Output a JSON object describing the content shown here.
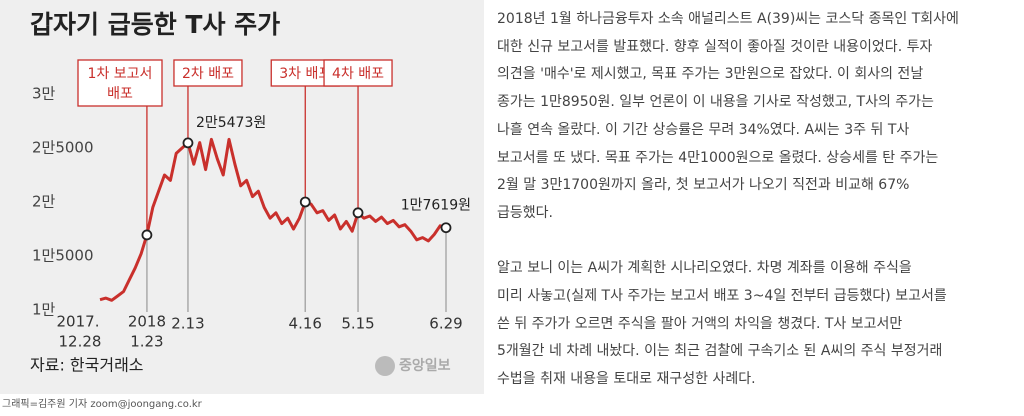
{
  "chart_data": {
    "type": "line",
    "title": "갑자기 급등한 T사 주가",
    "color": "#c9302c",
    "categories": [
      "12.28",
      null,
      null,
      null,
      null,
      null,
      null,
      null,
      "1.23",
      null,
      null,
      null,
      null,
      null,
      null,
      "2.13",
      null,
      null,
      null,
      null,
      null,
      null,
      null,
      null,
      null,
      null,
      null,
      null,
      null,
      null,
      null,
      null,
      null,
      null,
      null,
      "4.16",
      null,
      null,
      null,
      null,
      null,
      null,
      null,
      null,
      "5.15",
      null,
      null,
      null,
      null,
      null,
      null,
      null,
      null,
      null,
      null,
      null,
      null,
      null,
      null,
      "6.29"
    ],
    "x_years": [
      "2017.",
      "2018"
    ],
    "values": [
      10950,
      11100,
      10900,
      11300,
      11700,
      12800,
      13900,
      15200,
      16950,
      19500,
      21000,
      22500,
      22000,
      24500,
      25000,
      25473,
      23500,
      25500,
      23000,
      25800,
      24000,
      22500,
      25800,
      23500,
      21500,
      22000,
      20500,
      21000,
      19500,
      18500,
      19000,
      18000,
      18500,
      17500,
      18500,
      20000,
      19800,
      19000,
      19200,
      18300,
      18800,
      17500,
      18200,
      17300,
      19000,
      18500,
      18700,
      18200,
      18600,
      18000,
      18300,
      17700,
      17900,
      17300,
      16500,
      16700,
      16400,
      17000,
      17800,
      17619
    ],
    "value_labels": [
      "2만5473원",
      "1만7619원"
    ],
    "annotations": [
      [
        "1차 보고서",
        "배포"
      ],
      [
        "2차 배포"
      ],
      [
        "3차 배포"
      ],
      [
        "4차 배포"
      ]
    ],
    "ylim": [
      10000,
      30000
    ],
    "yticks": [
      {
        "value": 10000,
        "label": "1만"
      },
      {
        "value": 15000,
        "label": "1만5000"
      },
      {
        "value": 20000,
        "label": "2만"
      },
      {
        "value": 25000,
        "label": "2만5000"
      },
      {
        "value": 30000,
        "label": "3만"
      }
    ],
    "source": "자료: 한국거래소",
    "logo": "중앙일보"
  },
  "article": {
    "paragraphs": [
      [
        "2018년 1월 하나금융투자 소속 애널리스트 A(39)씨는 코스닥 종목인 T회사에",
        "대한 신규 보고서를 발표했다. 향후 실적이 좋아질 것이란 내용이었다. 투자",
        "의견을 '매수'로 제시했고, 목표 주가는 3만원으로 잡았다. 이 회사의 전날",
        "종가는 1만8950원. 일부 언론이 이 내용을 기사로 작성했고, T사의 주가는",
        "나흘 연속 올랐다. 이 기간 상승률은 무려 34%였다. A씨는 3주 뒤 T사",
        "보고서를 또 냈다. 목표 주가는 4만1000원으로 올렸다. 상승세를 탄 주가는",
        "2월 말 3만1700원까지 올라, 첫 보고서가 나오기 직전과 비교해 67%",
        "급등했다."
      ],
      [
        "알고 보니 이는 A씨가 계획한 시나리오였다. 차명 계좌를 이용해 주식을",
        "미리 사놓고(실제 T사 주가는 보고서 배포 3~4일 전부터 급등했다) 보고서를",
        "쓴 뒤 주가가 오르면 주식을 팔아 거액의 차익을 챙겼다. T사 보고서만",
        "5개월간 네 차례 내놨다. 이는 최근 검찰에 구속기소 된 A씨의 주식 부정거래",
        "수법을 취재 내용을 토대로 재구성한 사례다."
      ]
    ]
  },
  "credit": "그래픽=김주원 기자 zoom@joongang.co.kr"
}
